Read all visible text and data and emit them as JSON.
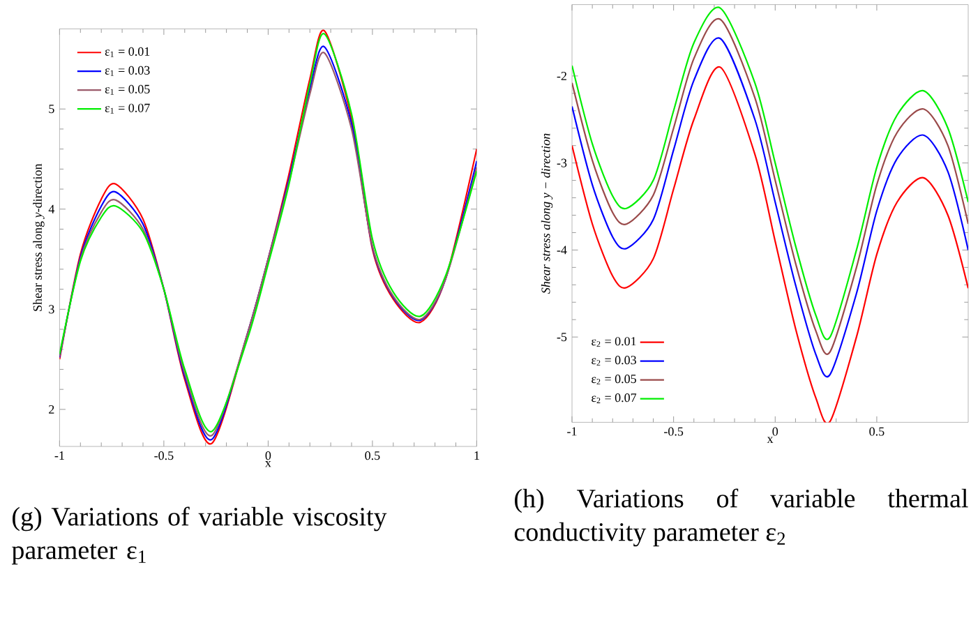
{
  "chart_data": [
    {
      "type": "line",
      "xlabel": "x",
      "ylabel": "Shear stress along *y*-direction",
      "xlim": [
        -1,
        1
      ],
      "ylim": [
        1.63,
        5.8
      ],
      "xticks": [
        -1,
        -0.5,
        0,
        0.5,
        1
      ],
      "yticks": [
        2,
        3,
        4,
        5
      ],
      "legend": "top left",
      "x": [
        -1,
        -0.9,
        -0.8,
        -0.73,
        -0.6,
        -0.5,
        -0.4,
        -0.27,
        -0.1,
        0,
        0.1,
        0.2,
        0.27,
        0.4,
        0.5,
        0.6,
        0.73,
        0.85,
        1
      ],
      "series": [
        {
          "name": "ε$_{1}$ = 0.01",
          "color": "#ff0000",
          "values": [
            2.5,
            3.55,
            4.1,
            4.25,
            3.9,
            3.2,
            2.3,
            1.66,
            2.75,
            3.5,
            4.35,
            5.3,
            5.78,
            4.9,
            3.6,
            3.1,
            2.87,
            3.3,
            4.6
          ]
        },
        {
          "name": "ε$_{1}$ = 0.03",
          "color": "#0000ff",
          "values": [
            2.52,
            3.52,
            4.03,
            4.17,
            3.85,
            3.2,
            2.33,
            1.7,
            2.75,
            3.5,
            4.3,
            5.2,
            5.62,
            4.85,
            3.62,
            3.12,
            2.89,
            3.3,
            4.48
          ]
        },
        {
          "name": "ε$_{1}$ = 0.05",
          "color": "#9a5a6a",
          "values": [
            2.53,
            3.5,
            3.97,
            4.09,
            3.8,
            3.2,
            2.36,
            1.74,
            2.75,
            3.5,
            4.27,
            5.15,
            5.56,
            4.8,
            3.63,
            3.13,
            2.9,
            3.3,
            4.42
          ]
        },
        {
          "name": "ε$_{1}$ = 0.07",
          "color": "#00ee00",
          "values": [
            2.55,
            3.48,
            3.92,
            4.03,
            3.77,
            3.2,
            2.4,
            1.78,
            2.7,
            3.45,
            4.25,
            5.25,
            5.75,
            4.95,
            3.7,
            3.17,
            2.93,
            3.33,
            4.38
          ]
        }
      ],
      "annotations": [
        "(g) Variations of variable viscosity parameter ε$_{1}$"
      ]
    },
    {
      "type": "line",
      "xlabel": "x",
      "ylabel": "Shear stress along y − direction",
      "xlim": [
        -1,
        0.95
      ],
      "ylim": [
        -5.98,
        -1.18
      ],
      "xticks": [
        -1,
        -0.5,
        0,
        0.5
      ],
      "yticks": [
        -5,
        -4,
        -3,
        -2
      ],
      "legend": "bottom left",
      "x": [
        -1,
        -0.9,
        -0.8,
        -0.73,
        -0.6,
        -0.5,
        -0.4,
        -0.27,
        -0.1,
        0,
        0.1,
        0.2,
        0.27,
        0.4,
        0.5,
        0.6,
        0.73,
        0.85,
        0.95
      ],
      "series": [
        {
          "name": "ε$_{2}$ = 0.01",
          "color": "#ff0000",
          "values": [
            -2.8,
            -3.7,
            -4.3,
            -4.43,
            -4.1,
            -3.3,
            -2.5,
            -1.9,
            -2.9,
            -3.9,
            -4.9,
            -5.7,
            -5.97,
            -5.0,
            -4.05,
            -3.45,
            -3.17,
            -3.6,
            -4.44
          ]
        },
        {
          "name": "ε$_{2}$ = 0.03",
          "color": "#0000ff",
          "values": [
            -2.35,
            -3.25,
            -3.85,
            -3.98,
            -3.65,
            -2.85,
            -2.05,
            -1.57,
            -2.5,
            -3.45,
            -4.4,
            -5.2,
            -5.43,
            -4.5,
            -3.55,
            -2.95,
            -2.68,
            -3.1,
            -4.0
          ]
        },
        {
          "name": "ε$_{2}$ = 0.05",
          "color": "#9a4a4a",
          "values": [
            -2.08,
            -2.97,
            -3.57,
            -3.7,
            -3.37,
            -2.6,
            -1.8,
            -1.35,
            -2.25,
            -3.2,
            -4.15,
            -4.93,
            -5.17,
            -4.2,
            -3.25,
            -2.65,
            -2.38,
            -2.8,
            -3.7
          ]
        },
        {
          "name": "ε$_{2}$ = 0.07",
          "color": "#00ee00",
          "values": [
            -1.88,
            -2.78,
            -3.38,
            -3.52,
            -3.2,
            -2.4,
            -1.62,
            -1.22,
            -2.08,
            -3.0,
            -3.95,
            -4.75,
            -5.0,
            -4.0,
            -3.05,
            -2.45,
            -2.17,
            -2.6,
            -3.45
          ]
        }
      ],
      "annotations": [
        "(h) Variations of variable thermal conductivity parameter ε$_{2}$"
      ]
    }
  ]
}
